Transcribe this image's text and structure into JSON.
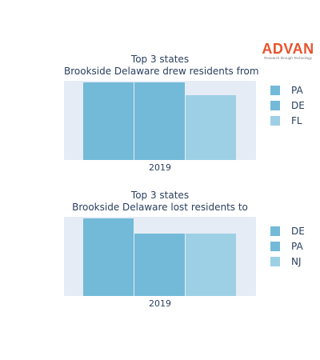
{
  "logo": {
    "name": "ADVAN",
    "tagline": "Research through Technology"
  },
  "chart_data": [
    {
      "type": "bar",
      "title_lines": [
        "Top 3 states",
        "Brookside Delaware drew residents from"
      ],
      "categories": [
        "2019"
      ],
      "series": [
        {
          "name": "PA",
          "values": [
            1.0
          ],
          "color": "#73bad8"
        },
        {
          "name": "DE",
          "values": [
            1.0
          ],
          "color": "#73bad8"
        },
        {
          "name": "FL",
          "values": [
            0.83
          ],
          "color": "#9dd0e4"
        }
      ],
      "ylim": [
        0,
        1.0
      ],
      "grid": true,
      "legend": "right"
    },
    {
      "type": "bar",
      "title_lines": [
        "Top 3 states",
        "Brookside Delaware lost residents to"
      ],
      "categories": [
        "2019"
      ],
      "series": [
        {
          "name": "DE",
          "values": [
            1.0
          ],
          "color": "#73bad8"
        },
        {
          "name": "PA",
          "values": [
            0.8
          ],
          "color": "#73bad8"
        },
        {
          "name": "NJ",
          "values": [
            0.8
          ],
          "color": "#9dd0e4"
        }
      ],
      "ylim": [
        0,
        1.0
      ],
      "grid": true,
      "legend": "right"
    }
  ]
}
